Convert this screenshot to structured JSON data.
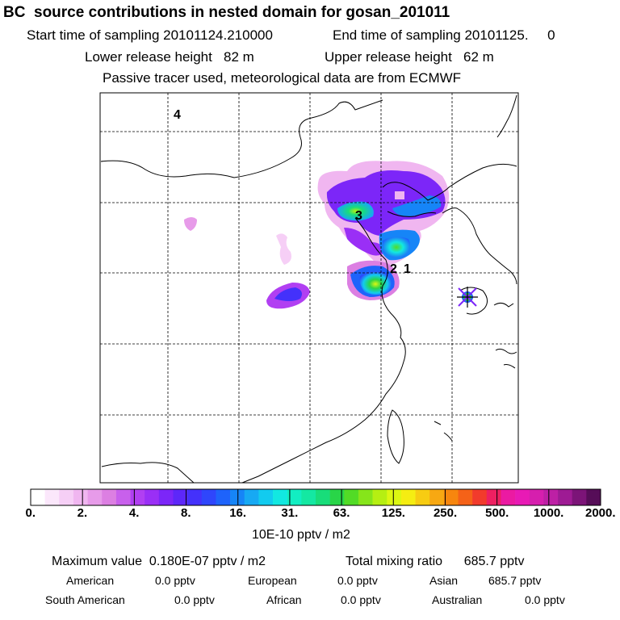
{
  "header": {
    "title": "BC  source contributions in nested domain for gosan_201011",
    "start_label": "Start time of sampling 20101124.210000",
    "end_label": "End time of sampling 20101125.     0",
    "lower_label": "Lower release height   82 m",
    "upper_label": "Upper release height   62 m",
    "tracer_label": "Passive tracer used, meteorological data are from ECMWF"
  },
  "map": {
    "labels": [
      {
        "text": "4",
        "name": "map-label-4"
      },
      {
        "text": "3",
        "name": "map-label-3"
      },
      {
        "text": "2",
        "name": "map-label-2"
      },
      {
        "text": "1",
        "name": "map-label-1"
      }
    ],
    "receptor_marker": "star-cross-icon",
    "colors": {
      "land_outline": "#000000",
      "grid": "#000000"
    }
  },
  "colorbar": {
    "ticks": [
      "0.",
      "2.",
      "4.",
      "8.",
      "16.",
      "31.",
      "63.",
      "125.",
      "250.",
      "500.",
      "1000.",
      "2000."
    ],
    "colors": [
      "#ffffff",
      "#fbe7fb",
      "#f6cff6",
      "#f0b6f0",
      "#e79be9",
      "#dc7fe2",
      "#c860ec",
      "#b13ff2",
      "#9a2ff6",
      "#7c26f8",
      "#5d27f9",
      "#4431fb",
      "#2f46fc",
      "#1e63fb",
      "#1685f7",
      "#17a9f3",
      "#12cbef",
      "#12e8e1",
      "#12eec2",
      "#14e8a2",
      "#18dd7a",
      "#29d548",
      "#52db26",
      "#86e51a",
      "#b6ef12",
      "#dcf712",
      "#f5ed12",
      "#f7cc12",
      "#f7a812",
      "#f7860e",
      "#f56218",
      "#f23b2c",
      "#ee2061",
      "#eb1aa2",
      "#e81ab5",
      "#d61fae",
      "#bd20a5",
      "#9e1b94",
      "#7c1478",
      "#560d58"
    ],
    "unit": "10E-10 pptv / m2"
  },
  "stats": {
    "max_label": "Maximum value  0.180E-07 pptv / m2",
    "mixing_label": "Total mixing ratio      685.7 pptv",
    "regions": [
      {
        "name": "American",
        "value": "0.0 pptv"
      },
      {
        "name": "European",
        "value": "0.0 pptv"
      },
      {
        "name": "Asian",
        "value": "685.7 pptv"
      },
      {
        "name": "South American",
        "value": "0.0 pptv"
      },
      {
        "name": "African",
        "value": "0.0 pptv"
      },
      {
        "name": "Australian",
        "value": "0.0 pptv"
      }
    ]
  }
}
